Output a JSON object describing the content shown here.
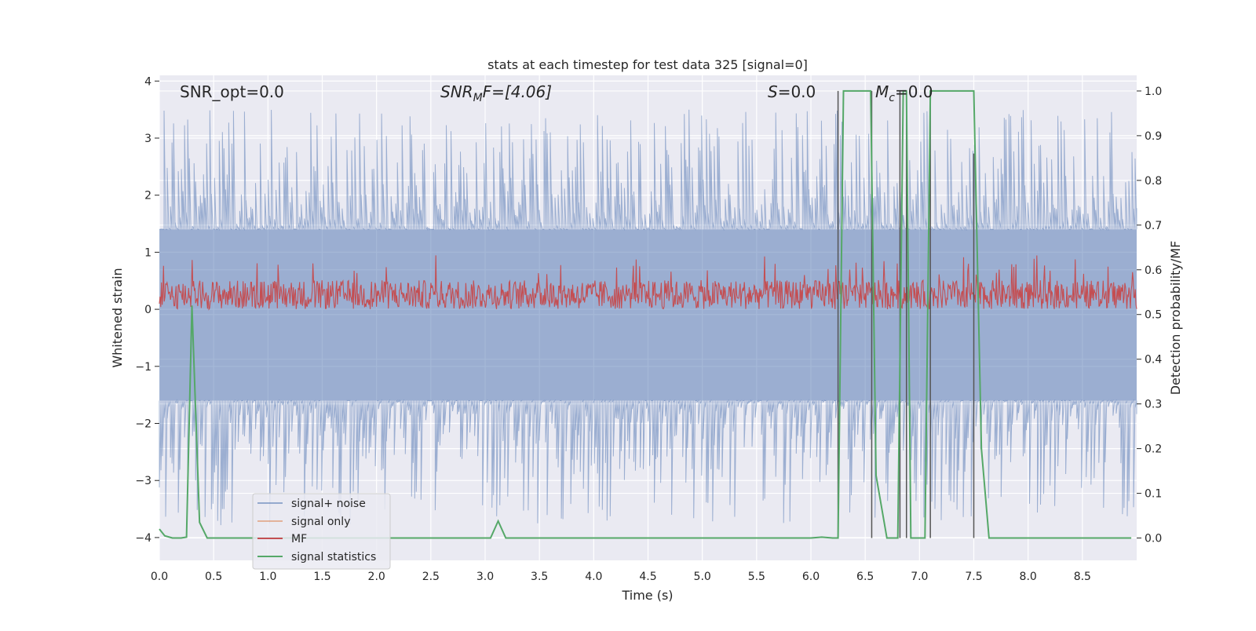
{
  "chart_data": {
    "type": "line",
    "title": "stats at each timestep for test data 325 [signal=0]",
    "xlabel": "Time (s)",
    "ylabel_left": "Whitened strain",
    "ylabel_right": "Detection probability/MF",
    "xlim": [
      0.0,
      9.0
    ],
    "ylim_left": [
      -4.4,
      4.1
    ],
    "ylim_right": [
      -0.05,
      1.035
    ],
    "xticks": [
      "0.0",
      "0.5",
      "1.0",
      "1.5",
      "2.0",
      "2.5",
      "3.0",
      "3.5",
      "4.0",
      "4.5",
      "5.0",
      "5.5",
      "6.0",
      "6.5",
      "7.0",
      "7.5",
      "8.0",
      "8.5"
    ],
    "yticks_left": [
      "4",
      "3",
      "2",
      "1",
      "0",
      "−1",
      "−2",
      "−3",
      "−4"
    ],
    "yticks_right": [
      "1.0",
      "0.9",
      "0.8",
      "0.7",
      "0.6",
      "0.5",
      "0.4",
      "0.3",
      "0.2",
      "0.1",
      "0.0"
    ],
    "grid": true,
    "legend_position": "lower-left",
    "annotations": {
      "snr_opt": "SNR_opt=0.0",
      "snr_mf_main": "SNR",
      "snr_mf_sub": "M",
      "snr_mf_tail": "F=[4.06]",
      "s_main": "S",
      "s_tail": "=0.0",
      "mc_main": "M",
      "mc_sub": "c",
      "mc_tail": "=0.0"
    },
    "series": [
      {
        "name": "signal+ noise",
        "axis": "left",
        "color": "#4c72b0",
        "kind": "noise",
        "envelope_upper": 1.4,
        "envelope_lower": -1.6,
        "peak_max": 3.5,
        "trough_min": -3.8
      },
      {
        "name": "signal only",
        "axis": "left",
        "color": "#dd8452",
        "values": []
      },
      {
        "name": "MF",
        "axis": "left",
        "color": "#c44e52",
        "kind": "noise",
        "envelope_upper": 0.6,
        "envelope_lower": 0.0,
        "peak_max": 0.95
      },
      {
        "name": "signal statistics",
        "axis": "right",
        "color": "#55a868",
        "x": [
          0.0,
          0.05,
          0.12,
          0.2,
          0.25,
          0.3,
          0.37,
          0.44,
          1.0,
          2.0,
          3.0,
          3.05,
          3.12,
          3.19,
          4.0,
          5.0,
          6.0,
          6.1,
          6.2,
          6.25,
          6.3,
          6.55,
          6.6,
          6.7,
          6.8,
          6.85,
          6.88,
          6.92,
          7.0,
          7.05,
          7.1,
          7.5,
          7.57,
          7.64,
          8.0,
          8.5,
          8.95
        ],
        "y": [
          0.02,
          0.005,
          0.0,
          0.0,
          0.002,
          0.52,
          0.035,
          0.0,
          0.0,
          0.0,
          0.0,
          0.0,
          0.038,
          0.0,
          0.0,
          0.0,
          0.0,
          0.002,
          0.0,
          0.0,
          1.0,
          1.0,
          0.14,
          0.0,
          0.0,
          1.0,
          1.0,
          0.0,
          0.0,
          0.0,
          1.0,
          1.0,
          0.2,
          0.0,
          0.0,
          0.0,
          0.0
        ]
      }
    ],
    "vertical_markers": [
      {
        "x": 6.25,
        "top": 1.0
      },
      {
        "x": 6.56,
        "top": 1.0
      },
      {
        "x": 6.82,
        "top": 1.0
      },
      {
        "x": 6.88,
        "top": 1.0
      },
      {
        "x": 7.1,
        "top": 1.0
      },
      {
        "x": 7.5,
        "top": 0.86
      }
    ],
    "legend": [
      {
        "label": "signal+ noise",
        "color": "#4c72b0"
      },
      {
        "label": "signal only",
        "color": "#dd8452"
      },
      {
        "label": "MF",
        "color": "#c44e52"
      },
      {
        "label": "signal statistics",
        "color": "#55a868"
      }
    ]
  }
}
